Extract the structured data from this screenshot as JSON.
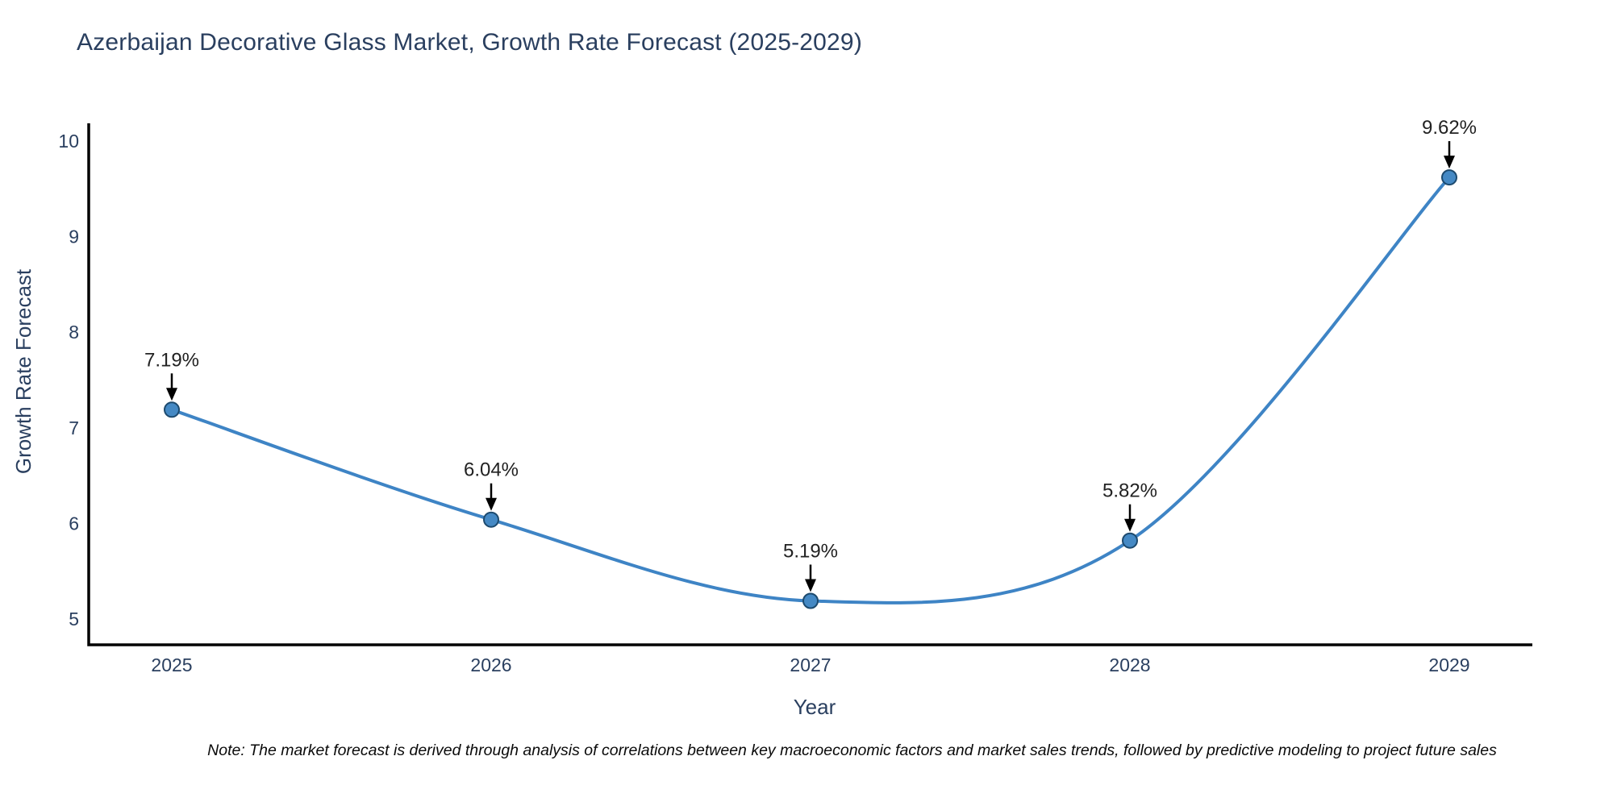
{
  "title": "Azerbaijan Decorative Glass Market, Growth Rate Forecast (2025-2029)",
  "note": "Note: The market forecast is derived through analysis of correlations between key macroeconomic factors and market sales trends, followed by predictive modeling to project future sales",
  "chart_data": {
    "type": "line",
    "line_shape": "spline",
    "title": "Azerbaijan Decorative Glass Market, Growth Rate Forecast (2025-2029)",
    "xlabel": "Year",
    "ylabel": "Growth Rate Forecast",
    "categories": [
      "2025",
      "2026",
      "2027",
      "2028",
      "2029"
    ],
    "values": [
      7.19,
      6.04,
      5.19,
      5.82,
      9.62
    ],
    "point_labels": [
      "7.19%",
      "6.04%",
      "5.19%",
      "5.82%",
      "9.62%"
    ],
    "yticks": [
      5,
      6,
      7,
      8,
      9,
      10
    ],
    "ylim": [
      4.73,
      10.19
    ],
    "grid": false,
    "legend": "none",
    "annotations": "value labels with black arrows pointing to each marker",
    "colors": {
      "line": "#3e84c5",
      "marker_fill": "#4589c4",
      "marker_edge": "#1d4a6e",
      "axis_line": "#000000",
      "tick_text": "#2a3f5f",
      "title_text": "#2a3f5f",
      "annotation_text": "#222222",
      "background": "#ffffff"
    }
  }
}
